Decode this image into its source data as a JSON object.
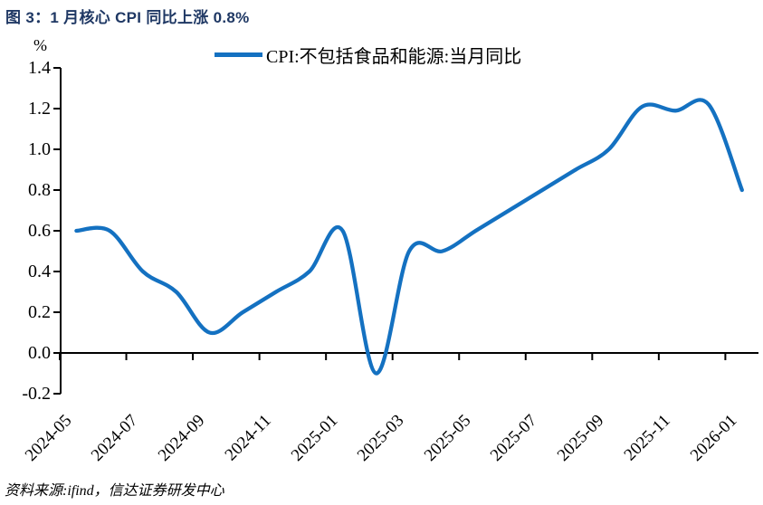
{
  "figure": {
    "title": "图 3：1 月核心 CPI 同比上涨 0.8%",
    "source_note": "资料来源:ifind，信达证券研发中心"
  },
  "chart_data": {
    "type": "line",
    "title": "图 3：1 月核心 CPI 同比上涨 0.8%",
    "ylabel": "%",
    "series_name": "CPI:不包括食品和能源:当月同比",
    "x": [
      "2024-05",
      "2024-06",
      "2024-07",
      "2024-08",
      "2024-09",
      "2024-10",
      "2024-11",
      "2024-12",
      "2025-01",
      "2025-02",
      "2025-03",
      "2025-04",
      "2025-05",
      "2025-06",
      "2025-07",
      "2025-08",
      "2025-09",
      "2025-10",
      "2025-11",
      "2025-12",
      "2026-01"
    ],
    "values": [
      0.6,
      0.6,
      0.4,
      0.3,
      0.1,
      0.2,
      0.3,
      0.4,
      0.6,
      -0.1,
      0.5,
      0.5,
      0.6,
      0.7,
      0.8,
      0.9,
      1.0,
      1.21,
      1.19,
      1.22,
      0.8
    ],
    "x_tick_labels": [
      "2024-05",
      "2024-07",
      "2024-09",
      "2024-11",
      "2025-01",
      "2025-03",
      "2025-05",
      "2025-07",
      "2025-09",
      "2025-11",
      "2026-01"
    ],
    "y_tick_labels": [
      "1.4",
      "1.2",
      "1.0",
      "0.8",
      "0.6",
      "0.4",
      "0.2",
      "0.0",
      "-0.2"
    ],
    "ylim": [
      -0.2,
      1.4
    ],
    "grid": false,
    "legend_position": "top",
    "colors": {
      "line": "#1471C1",
      "axis": "#000000",
      "title": "#1F3864"
    }
  }
}
